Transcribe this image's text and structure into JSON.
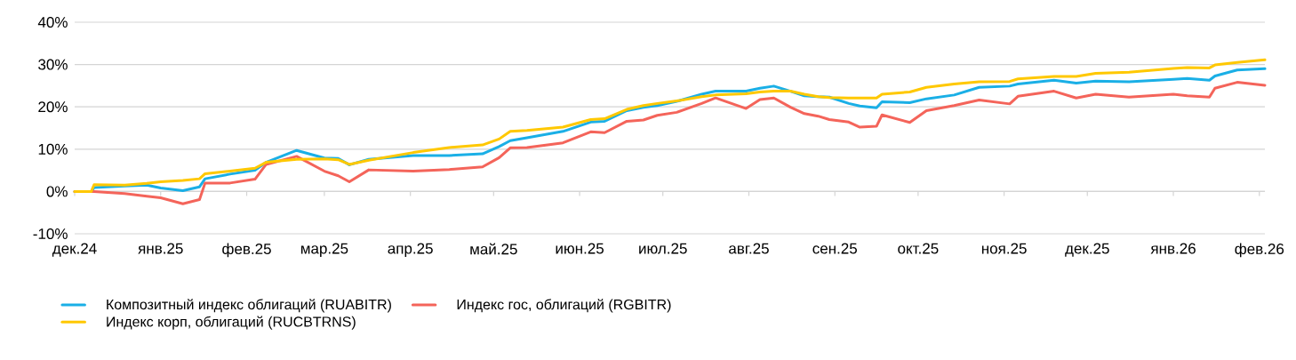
{
  "chart_data": {
    "type": "line",
    "x": [
      "2024-12-01",
      "2024-12-07",
      "2024-12-08",
      "2024-12-19",
      "2024-12-27",
      "2025-01-01",
      "2025-01-09",
      "2025-01-15",
      "2025-01-17",
      "2025-01-26",
      "2025-02-04",
      "2025-02-08",
      "2025-02-19",
      "2025-03-01",
      "2025-03-06",
      "2025-03-10",
      "2025-03-17",
      "2025-04-02",
      "2025-04-15",
      "2025-04-27",
      "2025-05-03",
      "2025-05-07",
      "2025-05-13",
      "2025-05-26",
      "2025-06-05",
      "2025-06-10",
      "2025-06-18",
      "2025-06-24",
      "2025-06-29",
      "2025-07-06",
      "2025-07-15",
      "2025-07-20",
      "2025-07-31",
      "2025-08-05",
      "2025-08-10",
      "2025-08-16",
      "2025-08-21",
      "2025-08-26",
      "2025-08-30",
      "2025-09-06",
      "2025-09-10",
      "2025-09-16",
      "2025-09-18",
      "2025-09-28",
      "2025-10-04",
      "2025-10-14",
      "2025-10-23",
      "2025-11-03",
      "2025-11-06",
      "2025-11-19",
      "2025-11-27",
      "2025-12-04",
      "2025-12-16",
      "2026-01-01",
      "2026-01-06",
      "2026-01-14",
      "2026-01-16",
      "2026-01-24",
      "2026-02-03"
    ],
    "series": [
      {
        "name": "Композитный индекс облигаций (RUABITR)",
        "color": "#1aafe6",
        "values": [
          0,
          0,
          0.9,
          1.3,
          1.5,
          0.8,
          0.2,
          1.1,
          3.0,
          4.1,
          5.0,
          6.9,
          9.7,
          7.9,
          7.8,
          6.3,
          7.6,
          8.5,
          8.5,
          8.9,
          10.6,
          12.0,
          12.7,
          14.2,
          16.4,
          16.6,
          19.1,
          19.9,
          20.3,
          21.3,
          23.0,
          23.7,
          23.7,
          24.4,
          24.9,
          23.7,
          22.6,
          22.4,
          22.3,
          20.8,
          20.2,
          19.8,
          21.2,
          21.0,
          21.9,
          22.8,
          24.6,
          24.9,
          25.4,
          26.3,
          25.6,
          26.1,
          25.9,
          26.5,
          26.7,
          26.3,
          27.3,
          28.7,
          29.0
        ]
      },
      {
        "name": "Индекс гос, облигаций (RGBITR)",
        "color": "#f4645a",
        "values": [
          0,
          0,
          0,
          -0.5,
          -1.1,
          -1.5,
          -2.9,
          -1.9,
          2.0,
          2.0,
          2.9,
          6.4,
          8.3,
          4.8,
          3.7,
          2.3,
          5.1,
          4.8,
          5.2,
          5.8,
          8.0,
          10.3,
          10.4,
          11.5,
          14.1,
          13.9,
          16.6,
          16.9,
          18.0,
          18.7,
          20.8,
          22.1,
          19.6,
          21.7,
          22.1,
          19.9,
          18.4,
          17.8,
          17.0,
          16.4,
          15.2,
          15.4,
          18.1,
          16.3,
          19.1,
          20.3,
          21.6,
          20.7,
          22.5,
          23.7,
          22.1,
          23.0,
          22.3,
          23.0,
          22.6,
          22.3,
          24.4,
          25.8,
          25.1
        ]
      },
      {
        "name": "Индекс корп, облигаций (RUCBTRNS)",
        "color": "#ffc800",
        "values": [
          0,
          0,
          1.6,
          1.5,
          1.9,
          2.3,
          2.6,
          3.0,
          4.2,
          4.8,
          5.5,
          6.9,
          7.6,
          7.7,
          7.5,
          6.4,
          7.4,
          9.2,
          10.4,
          11.0,
          12.4,
          14.2,
          14.4,
          15.2,
          17.0,
          17.2,
          19.4,
          20.3,
          20.8,
          21.4,
          22.4,
          22.8,
          23.1,
          23.5,
          23.7,
          23.7,
          23.0,
          22.4,
          22.2,
          22.1,
          22.1,
          22.1,
          23.0,
          23.5,
          24.6,
          25.4,
          25.9,
          26.0,
          26.6,
          27.2,
          27.2,
          27.9,
          28.2,
          29.1,
          29.3,
          29.2,
          29.9,
          30.5,
          31.1
        ]
      }
    ],
    "xlim": [
      "2024-12-01",
      "2026-02-03"
    ],
    "xticks": [
      {
        "value": "2024-12-01",
        "label": "дек.24"
      },
      {
        "value": "2025-01-01",
        "label": "янв.25"
      },
      {
        "value": "2025-02-01",
        "label": "фев.25"
      },
      {
        "value": "2025-03-01",
        "label": "мар.25"
      },
      {
        "value": "2025-04-01",
        "label": "апр.25"
      },
      {
        "value": "2025-05-01",
        "label": "май.25"
      },
      {
        "value": "2025-06-01",
        "label": "июн.25"
      },
      {
        "value": "2025-07-01",
        "label": "июл.25"
      },
      {
        "value": "2025-08-01",
        "label": "авг.25"
      },
      {
        "value": "2025-09-01",
        "label": "сен.25"
      },
      {
        "value": "2025-10-01",
        "label": "окт.25"
      },
      {
        "value": "2025-11-01",
        "label": "ноя.25"
      },
      {
        "value": "2025-12-01",
        "label": "дек.25"
      },
      {
        "value": "2026-01-01",
        "label": "янв.26"
      },
      {
        "value": "2026-02-01",
        "label": "фев.26"
      }
    ],
    "ylim": [
      -10,
      40
    ],
    "yticks": [
      {
        "value": -10,
        "label": "-10%"
      },
      {
        "value": 0,
        "label": "0%"
      },
      {
        "value": 10,
        "label": "10%"
      },
      {
        "value": 20,
        "label": "20%"
      },
      {
        "value": 30,
        "label": "30%"
      },
      {
        "value": 40,
        "label": "40%"
      }
    ],
    "grid": "y",
    "legend": "bottom"
  }
}
